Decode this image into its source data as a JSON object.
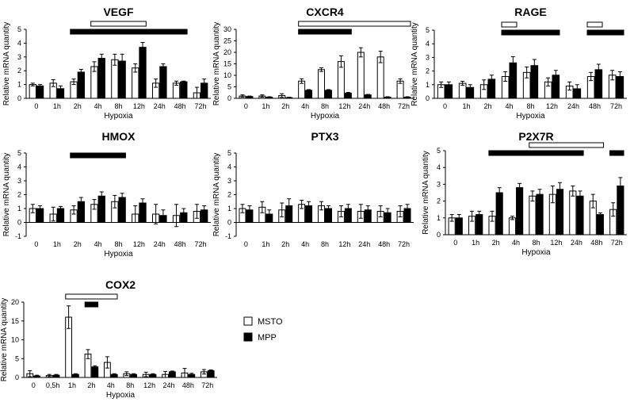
{
  "legend": {
    "items": [
      {
        "label": "MSTO",
        "color": "#ffffff"
      },
      {
        "label": "MPP",
        "color": "#000000"
      }
    ]
  },
  "chart_data": [
    {
      "type": "bar",
      "title": "VEGF",
      "xlabel": "Hypoxia",
      "ylabel": "Relative mRNA quantity",
      "ylim": [
        0,
        5
      ],
      "yticks": [
        0,
        1,
        2,
        3,
        4,
        5
      ],
      "categories": [
        "0",
        "1h",
        "2h",
        "4h",
        "8h",
        "12h",
        "24h",
        "48h",
        "72h"
      ],
      "series": [
        {
          "name": "MSTO",
          "values": [
            1.0,
            1.1,
            1.2,
            2.3,
            2.8,
            2.2,
            1.1,
            1.1,
            0.4
          ],
          "errors": [
            0.1,
            0.25,
            0.2,
            0.35,
            0.4,
            0.3,
            0.3,
            0.15,
            0.4
          ]
        },
        {
          "name": "MPP",
          "values": [
            0.9,
            0.7,
            1.9,
            2.9,
            2.7,
            3.7,
            2.3,
            1.2,
            1.1
          ],
          "errors": [
            0.1,
            0.2,
            0.2,
            0.3,
            0.5,
            0.35,
            0.2,
            0.05,
            0.3
          ]
        }
      ],
      "sig_bars": [
        {
          "series": "MSTO",
          "from": "4h",
          "to": "12h"
        },
        {
          "series": "MPP",
          "from": "2h",
          "to": "48h"
        }
      ]
    },
    {
      "type": "bar",
      "title": "CXCR4",
      "xlabel": "Hypoxia",
      "ylabel": "Relative mRNA quantity",
      "ylim": [
        0,
        30
      ],
      "yticks": [
        0,
        5,
        10,
        15,
        20,
        25,
        30
      ],
      "categories": [
        "0",
        "1h",
        "2h",
        "4h",
        "8h",
        "12h",
        "24h",
        "48h",
        "72h"
      ],
      "series": [
        {
          "name": "MSTO",
          "values": [
            1.0,
            1.0,
            1.2,
            7.5,
            12.5,
            16,
            20,
            18,
            7.5
          ],
          "errors": [
            0.5,
            0.5,
            0.8,
            1.0,
            0.8,
            2.5,
            2.0,
            2.5,
            1.0
          ]
        },
        {
          "name": "MPP",
          "values": [
            0.8,
            0.5,
            0.3,
            3.5,
            3.5,
            2.3,
            1.5,
            0.5,
            0.5
          ],
          "errors": [
            0.2,
            0.2,
            0.2,
            0.3,
            0.3,
            0.3,
            0.2,
            0.2,
            0.2
          ]
        }
      ],
      "sig_bars": [
        {
          "series": "MSTO",
          "from": "4h",
          "to": "72h"
        },
        {
          "series": "MPP",
          "from": "4h",
          "to": "12h"
        }
      ]
    },
    {
      "type": "bar",
      "title": "RAGE",
      "xlabel": "Hypoxia",
      "ylabel": "Relative mRNA quantity",
      "ylim": [
        0,
        5
      ],
      "yticks": [
        0,
        1,
        2,
        3,
        4,
        5
      ],
      "categories": [
        "0",
        "1h",
        "2h",
        "4h",
        "8h",
        "12h",
        "24h",
        "48h",
        "72h"
      ],
      "series": [
        {
          "name": "MSTO",
          "values": [
            1.0,
            1.1,
            1.0,
            1.6,
            1.9,
            1.2,
            0.9,
            1.6,
            1.7
          ],
          "errors": [
            0.2,
            0.15,
            0.35,
            0.35,
            0.4,
            0.3,
            0.3,
            0.3,
            0.35
          ]
        },
        {
          "name": "MPP",
          "values": [
            1.0,
            0.8,
            1.4,
            2.6,
            2.4,
            1.7,
            0.7,
            2.1,
            1.6
          ],
          "errors": [
            0.2,
            0.2,
            0.3,
            0.45,
            0.45,
            0.35,
            0.3,
            0.4,
            0.35
          ]
        }
      ],
      "sig_bars": [
        {
          "series": "MSTO",
          "from": "4h",
          "to": "4h"
        },
        {
          "series": "MPP",
          "from": "4h",
          "to": "12h"
        },
        {
          "series": "MSTO",
          "from": "48h",
          "to": "48h"
        },
        {
          "series": "MPP",
          "from": "48h",
          "to": "72h"
        }
      ]
    },
    {
      "type": "bar",
      "title": "HMOX",
      "xlabel": "Hypoxia",
      "ylabel": "Relative mRNA quantity",
      "ylim": [
        -1,
        5
      ],
      "yticks": [
        -1,
        0,
        1,
        2,
        3,
        4,
        5
      ],
      "categories": [
        "0",
        "1h",
        "2h",
        "4h",
        "8h",
        "12h",
        "24h",
        "48h",
        "72h"
      ],
      "series": [
        {
          "name": "MSTO",
          "values": [
            1.0,
            0.6,
            0.9,
            1.3,
            1.5,
            0.6,
            0.6,
            0.5,
            0.8
          ],
          "errors": [
            0.3,
            0.5,
            0.3,
            0.35,
            0.45,
            0.6,
            0.7,
            0.8,
            0.5
          ]
        },
        {
          "name": "MPP",
          "values": [
            1.0,
            1.0,
            1.5,
            1.9,
            1.8,
            1.4,
            0.5,
            0.7,
            0.9
          ],
          "errors": [
            0.2,
            0.15,
            0.3,
            0.3,
            0.3,
            0.3,
            0.4,
            0.3,
            0.3
          ]
        }
      ],
      "sig_bars": [
        {
          "series": "MPP",
          "from": "2h",
          "to": "8h"
        }
      ]
    },
    {
      "type": "bar",
      "title": "PTX3",
      "xlabel": "",
      "ylabel": "Relative mRNA quantity",
      "ylim": [
        -1,
        5
      ],
      "yticks": [
        -1,
        0,
        1,
        2,
        3,
        4,
        5
      ],
      "categories": [
        "0",
        "1h",
        "2h",
        "4h",
        "8h",
        "12h",
        "24h",
        "48h",
        "72h"
      ],
      "series": [
        {
          "name": "MSTO",
          "values": [
            1.0,
            1.1,
            0.9,
            1.3,
            1.2,
            0.8,
            0.8,
            0.8,
            0.8
          ],
          "errors": [
            0.3,
            0.4,
            0.5,
            0.3,
            0.3,
            0.4,
            0.5,
            0.4,
            0.4
          ]
        },
        {
          "name": "MPP",
          "values": [
            0.9,
            0.6,
            1.2,
            1.2,
            1.0,
            1.0,
            0.9,
            0.7,
            1.0
          ],
          "errors": [
            0.3,
            0.3,
            0.5,
            0.3,
            0.2,
            0.3,
            0.3,
            0.3,
            0.3
          ]
        }
      ],
      "sig_bars": []
    },
    {
      "type": "bar",
      "title": "P2X7R",
      "xlabel": "Hypoxia",
      "ylabel": "Relative mRNA quantity",
      "ylim": [
        0,
        5
      ],
      "yticks": [
        0,
        1,
        2,
        3,
        4,
        5
      ],
      "categories": [
        "0",
        "1h",
        "2h",
        "4h",
        "8h",
        "12h",
        "24h",
        "48h",
        "72h"
      ],
      "series": [
        {
          "name": "MSTO",
          "values": [
            1.0,
            1.1,
            1.1,
            1.0,
            2.3,
            2.4,
            2.6,
            2.0,
            1.5
          ],
          "errors": [
            0.2,
            0.3,
            0.3,
            0.1,
            0.3,
            0.5,
            0.3,
            0.4,
            0.4
          ]
        },
        {
          "name": "MPP",
          "values": [
            1.0,
            1.2,
            2.5,
            2.8,
            2.4,
            2.7,
            2.3,
            1.2,
            2.9
          ],
          "errors": [
            0.2,
            0.2,
            0.3,
            0.25,
            0.3,
            0.4,
            0.3,
            0.1,
            0.5
          ]
        }
      ],
      "sig_bars": [
        {
          "series": "MSTO",
          "from": "8h",
          "to": "48h"
        },
        {
          "series": "MPP",
          "from": "2h",
          "to": "24h"
        },
        {
          "series": "MPP",
          "from": "72h",
          "to": "72h"
        }
      ]
    },
    {
      "type": "bar",
      "title": "COX2",
      "xlabel": "Hypoxia",
      "ylabel": "Relative mRNA quantity",
      "ylim": [
        0,
        20
      ],
      "yticks": [
        0,
        5,
        10,
        15,
        20
      ],
      "categories": [
        "0",
        "0,5h",
        "1h",
        "2h",
        "4h",
        "8h",
        "12h",
        "24h",
        "48h",
        "72h"
      ],
      "series": [
        {
          "name": "MSTO",
          "values": [
            1.0,
            0.5,
            16,
            6.2,
            4.0,
            1.0,
            0.8,
            0.8,
            1.2,
            1.5
          ],
          "errors": [
            0.8,
            0.3,
            3.0,
            1.2,
            1.5,
            0.5,
            0.6,
            0.8,
            1.2,
            0.6
          ]
        },
        {
          "name": "MPP",
          "values": [
            0.4,
            0.6,
            0.8,
            2.8,
            0.8,
            0.8,
            0.8,
            1.5,
            0.8,
            1.8
          ],
          "errors": [
            0.2,
            0.2,
            0.2,
            0.3,
            0.2,
            0.2,
            0.2,
            0.2,
            0.3,
            0.2
          ]
        }
      ],
      "sig_bars": [
        {
          "series": "MSTO",
          "from": "1h",
          "to": "4h"
        },
        {
          "series": "MPP",
          "from": "2h",
          "to": "2h"
        }
      ]
    }
  ]
}
